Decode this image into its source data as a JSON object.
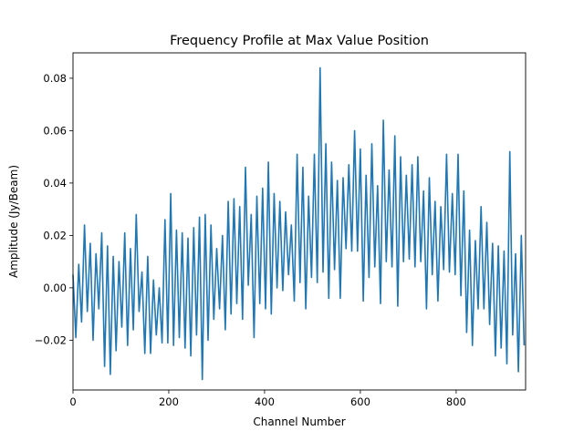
{
  "chart_data": {
    "type": "line",
    "title": "Frequency Profile at Max Value Position",
    "xlabel": "Channel Number",
    "ylabel": "Amplitude (Jy/Beam)",
    "xlim": [
      0,
      945
    ],
    "ylim": [
      -0.039,
      0.0897
    ],
    "xticks": [
      0,
      200,
      400,
      600,
      800
    ],
    "yticks": [
      -0.02,
      0.0,
      0.02,
      0.04,
      0.06,
      0.08
    ],
    "ytick_labels": [
      "−0.02",
      "0.00",
      "0.02",
      "0.04",
      "0.06",
      "0.08"
    ],
    "grid": false,
    "line_color": "#1f77b4",
    "series": [
      {
        "x": [
          0,
          6,
          12,
          18,
          24,
          30,
          36,
          42,
          48,
          54,
          60,
          66,
          72,
          78,
          84,
          90,
          96,
          102,
          108,
          114,
          120,
          126,
          132,
          138,
          144,
          150,
          156,
          162,
          168,
          174,
          180,
          186,
          192,
          198,
          204,
          210,
          216,
          222,
          228,
          234,
          240,
          246,
          252,
          258,
          264,
          270,
          276,
          282,
          288,
          294,
          300,
          306,
          312,
          318,
          324,
          330,
          336,
          342,
          348,
          354,
          360,
          366,
          372,
          378,
          384,
          390,
          396,
          402,
          408,
          414,
          420,
          426,
          432,
          438,
          444,
          450,
          456,
          462,
          468,
          474,
          480,
          486,
          492,
          498,
          504,
          510,
          516,
          522,
          528,
          534,
          540,
          546,
          552,
          558,
          564,
          570,
          576,
          582,
          588,
          594,
          600,
          606,
          612,
          618,
          624,
          630,
          636,
          642,
          648,
          654,
          660,
          666,
          672,
          678,
          684,
          690,
          696,
          702,
          708,
          714,
          720,
          726,
          732,
          738,
          744,
          750,
          756,
          762,
          768,
          774,
          780,
          786,
          792,
          798,
          804,
          810,
          816,
          822,
          828,
          834,
          840,
          846,
          852,
          858,
          864,
          870,
          876,
          882,
          888,
          894,
          900,
          906,
          912,
          918,
          924,
          930,
          936,
          942
        ],
        "y": [
          0.005,
          -0.019,
          0.009,
          -0.013,
          0.024,
          -0.009,
          0.017,
          -0.02,
          0.013,
          -0.008,
          0.021,
          -0.03,
          0.016,
          -0.033,
          0.012,
          -0.024,
          0.01,
          -0.015,
          0.021,
          -0.022,
          0.015,
          -0.016,
          0.028,
          -0.009,
          0.006,
          -0.025,
          0.012,
          -0.025,
          0.003,
          -0.018,
          0.0,
          -0.021,
          0.026,
          -0.021,
          0.036,
          -0.022,
          0.022,
          -0.019,
          0.021,
          -0.023,
          0.019,
          -0.026,
          0.023,
          -0.018,
          0.027,
          -0.035,
          0.028,
          -0.02,
          0.024,
          -0.012,
          0.015,
          -0.008,
          0.02,
          -0.016,
          0.033,
          -0.01,
          0.034,
          -0.006,
          0.031,
          -0.012,
          0.046,
          0.001,
          0.028,
          -0.019,
          0.035,
          -0.006,
          0.038,
          -0.008,
          0.048,
          -0.01,
          0.036,
          0.0,
          0.033,
          -0.001,
          0.029,
          0.005,
          0.024,
          -0.005,
          0.051,
          0.002,
          0.046,
          -0.008,
          0.035,
          0.004,
          0.051,
          0.002,
          0.084,
          0.006,
          0.055,
          -0.004,
          0.048,
          0.007,
          0.041,
          -0.004,
          0.042,
          0.015,
          0.047,
          0.014,
          0.06,
          0.014,
          0.053,
          -0.005,
          0.043,
          0.004,
          0.055,
          0.008,
          0.039,
          -0.006,
          0.064,
          0.01,
          0.045,
          0.008,
          0.058,
          -0.007,
          0.05,
          0.01,
          0.043,
          0.011,
          0.047,
          0.008,
          0.05,
          0.01,
          0.037,
          -0.008,
          0.042,
          0.005,
          0.033,
          -0.005,
          0.031,
          0.007,
          0.051,
          0.006,
          0.036,
          0.005,
          0.051,
          -0.003,
          0.037,
          -0.017,
          0.022,
          -0.022,
          0.018,
          -0.008,
          0.031,
          -0.008,
          0.025,
          -0.014,
          0.017,
          -0.026,
          0.016,
          -0.023,
          0.014,
          -0.029,
          0.052,
          -0.018,
          0.013,
          -0.032,
          0.02,
          -0.022
        ]
      }
    ]
  }
}
